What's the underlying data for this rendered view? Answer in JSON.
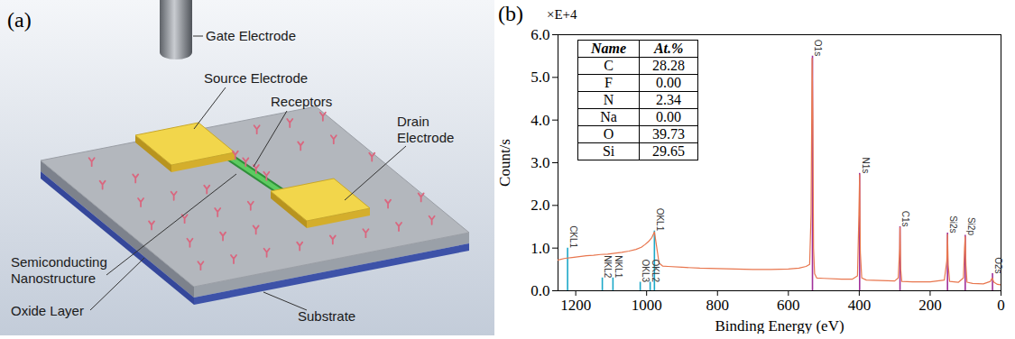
{
  "panel_a": {
    "letter": "(a)",
    "labels": {
      "gate_electrode": "Gate Electrode",
      "source_electrode": "Source Electrode",
      "receptors": "Receptors",
      "drain_electrode": "Drain Electrode",
      "semiconducting_nanostructure": "Semiconducting Nanostructure",
      "oxide_layer": "Oxide Layer",
      "substrate": "Substrate"
    }
  },
  "chart_data": {
    "type": "line",
    "letter": "(b)",
    "x_label": "Binding Energy (eV)",
    "y_label": "Count/s",
    "y_multiplier": "×E+4",
    "xlim": [
      1250,
      0
    ],
    "xticks": [
      1200,
      1000,
      800,
      600,
      400,
      200,
      0
    ],
    "ylim": [
      0,
      6
    ],
    "yticks": [
      {
        "value": 0,
        "label": "0.0"
      },
      {
        "value": 1,
        "label": "1.0"
      },
      {
        "value": 2,
        "label": "2.0"
      },
      {
        "value": 3,
        "label": "3.0"
      },
      {
        "value": 4,
        "label": "4.0"
      },
      {
        "value": 5,
        "label": "5.0"
      },
      {
        "value": 6,
        "label": "6.0"
      }
    ],
    "grid": false,
    "color": "#e8764e",
    "x": [
      1250,
      1230,
      1210,
      1190,
      1170,
      1150,
      1130,
      1110,
      1090,
      1070,
      1050,
      1030,
      1015,
      1005,
      995,
      985,
      978,
      972,
      965,
      955,
      940,
      900,
      850,
      800,
      750,
      700,
      650,
      600,
      570,
      550,
      540,
      536,
      533,
      531,
      529,
      526,
      520,
      500,
      450,
      420,
      405,
      401,
      399,
      397,
      393,
      380,
      340,
      300,
      290,
      286,
      285,
      283,
      280,
      250,
      200,
      160,
      153,
      151,
      149,
      145,
      120,
      106,
      103,
      101,
      99,
      96,
      80,
      50,
      30,
      25,
      20,
      10,
      0
    ],
    "values": [
      0.72,
      0.76,
      0.78,
      0.8,
      0.82,
      0.83,
      0.85,
      0.86,
      0.88,
      0.9,
      0.93,
      0.97,
      1.02,
      1.08,
      1.15,
      1.25,
      1.38,
      1.05,
      0.65,
      0.58,
      0.57,
      0.55,
      0.53,
      0.52,
      0.51,
      0.5,
      0.5,
      0.51,
      0.53,
      0.57,
      0.62,
      1.8,
      5.45,
      4.0,
      1.0,
      0.4,
      0.3,
      0.29,
      0.27,
      0.27,
      0.35,
      1.8,
      2.72,
      0.9,
      0.3,
      0.25,
      0.24,
      0.23,
      0.3,
      1.0,
      1.48,
      0.5,
      0.22,
      0.21,
      0.21,
      0.25,
      0.7,
      1.32,
      0.6,
      0.22,
      0.2,
      0.3,
      1.0,
      1.27,
      0.6,
      0.2,
      0.17,
      0.16,
      0.22,
      0.3,
      0.2,
      0.15,
      0.14
    ],
    "peaks": [
      {
        "label": "CKL1",
        "x": 1223,
        "height": 1.0,
        "color": "#1ca8c8"
      },
      {
        "label": "NKL2",
        "x": 1125,
        "height": 0.3,
        "color": "#1ca8c8"
      },
      {
        "label": "NKL1",
        "x": 1095,
        "height": 0.3,
        "color": "#1ca8c8"
      },
      {
        "label": "OKL3",
        "x": 1018,
        "height": 0.2,
        "color": "#1ca8c8"
      },
      {
        "label": "OKL2",
        "x": 990,
        "height": 0.2,
        "color": "#1ca8c8"
      },
      {
        "label": "OKL1",
        "x": 978,
        "height": 1.4,
        "color": "#1ca8c8"
      },
      {
        "label": "O1s",
        "x": 532,
        "height": 5.5,
        "color": "#a0309a"
      },
      {
        "label": "N1s",
        "x": 399,
        "height": 2.75,
        "color": "#a0309a"
      },
      {
        "label": "C1s",
        "x": 285,
        "height": 1.5,
        "color": "#a0309a"
      },
      {
        "label": "Si2s",
        "x": 151,
        "height": 1.35,
        "color": "#a0309a"
      },
      {
        "label": "Si2p",
        "x": 101,
        "height": 1.3,
        "color": "#a0309a"
      },
      {
        "label": "O2s",
        "x": 24,
        "height": 0.4,
        "color": "#a0309a"
      }
    ],
    "table": {
      "columns": [
        "Name",
        "At.%"
      ],
      "rows": [
        [
          "C",
          "28.28"
        ],
        [
          "F",
          "0.00"
        ],
        [
          "N",
          "2.34"
        ],
        [
          "Na",
          "0.00"
        ],
        [
          "O",
          "39.73"
        ],
        [
          "Si",
          "29.65"
        ]
      ]
    }
  }
}
